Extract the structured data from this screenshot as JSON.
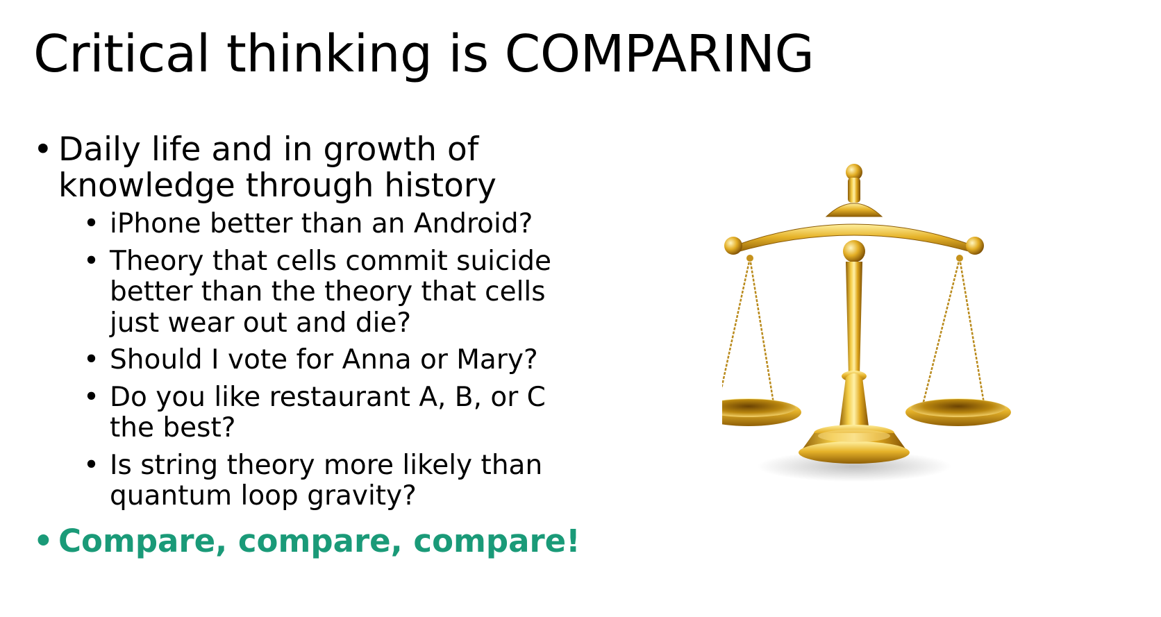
{
  "slide": {
    "title": "Critical thinking is COMPARING",
    "bullets": [
      {
        "text": "Daily life and in growth of knowledge through history",
        "subbullets": [
          "iPhone better than an Android?",
          "Theory that cells commit suicide better than the theory that cells just wear out and die?",
          "Should I vote for Anna or Mary?",
          "Do you like restaurant A, B, or C the best?",
          "Is string theory more likely than quantum loop gravity?"
        ]
      },
      {
        "text": "Compare, compare, compare!"
      }
    ],
    "bullet_glyph": "•",
    "image_icon": "balance-scale-icon",
    "colors": {
      "emphasis": "#1a9a78",
      "gold": "#d4a017"
    }
  }
}
